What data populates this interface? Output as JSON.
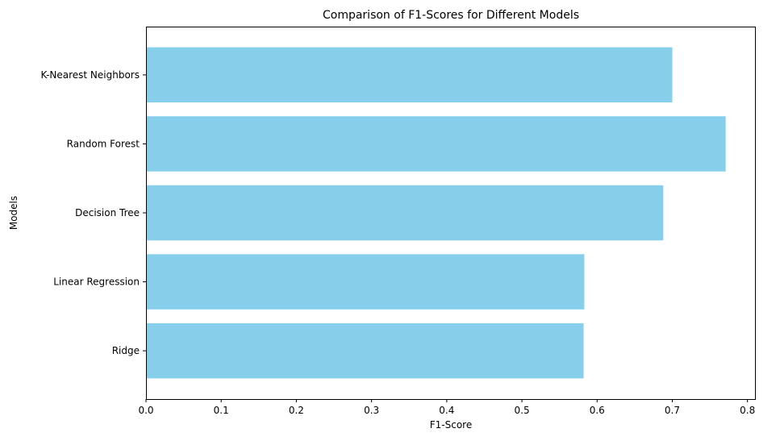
{
  "chart_data": {
    "type": "bar",
    "orientation": "horizontal",
    "title": "Comparison of F1-Scores for Different Models",
    "xlabel": "F1-Score",
    "ylabel": "Models",
    "categories": [
      "Ridge",
      "Linear Regression",
      "Decision Tree",
      "Random Forest",
      "K-Nearest Neighbors"
    ],
    "values": [
      0.582,
      0.583,
      0.688,
      0.771,
      0.7
    ],
    "xlim": [
      0,
      0.81
    ],
    "xticks": [
      0.0,
      0.1,
      0.2,
      0.3,
      0.4,
      0.5,
      0.6,
      0.7,
      0.8
    ],
    "xtick_labels": [
      "0.0",
      "0.1",
      "0.2",
      "0.3",
      "0.4",
      "0.5",
      "0.6",
      "0.7",
      "0.8"
    ],
    "bar_color": "#87ceeb",
    "grid": false,
    "legend": "none"
  }
}
